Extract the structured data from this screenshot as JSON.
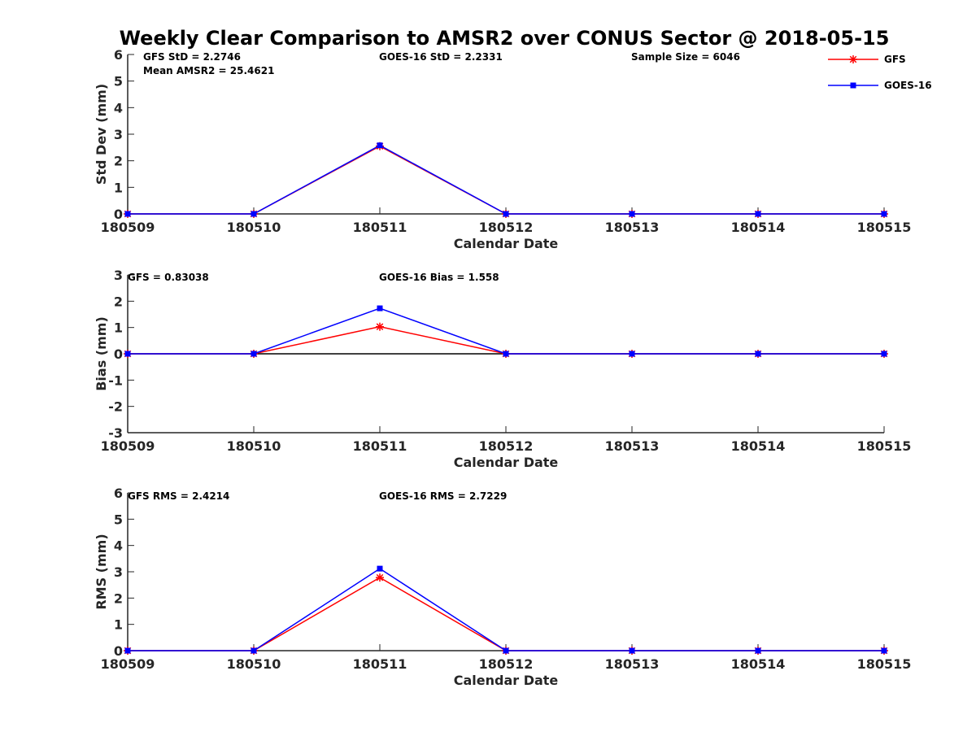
{
  "figure": {
    "title": "Weekly Clear Comparison to AMSR2 over CONUS Sector @ 2018-05-15"
  },
  "legend": {
    "placement": "top-right",
    "entries": [
      {
        "name": "GFS",
        "marker": "asterisk",
        "color": "#ff0000"
      },
      {
        "name": "GOES-16",
        "marker": "square",
        "color": "#0000ff"
      }
    ]
  },
  "chart_data": [
    {
      "type": "line",
      "id": "std",
      "xlabel": "Calendar Date",
      "ylabel": "Std Dev (mm)",
      "ylim": [
        0,
        6
      ],
      "yticks": [
        "0",
        "1",
        "2",
        "3",
        "4",
        "5",
        "6"
      ],
      "categories": [
        "180509",
        "180510",
        "180511",
        "180512",
        "180513",
        "180514",
        "180515"
      ],
      "series": [
        {
          "name": "GFS",
          "color": "#ff0000",
          "marker": "asterisk",
          "values": [
            0,
            0,
            2.55,
            0,
            0,
            0,
            0
          ]
        },
        {
          "name": "GOES-16",
          "color": "#0000ff",
          "marker": "square",
          "values": [
            0,
            0,
            2.58,
            0,
            0,
            0,
            0
          ]
        }
      ],
      "annotations": [
        "GFS StD = 2.2746",
        "Mean AMSR2 = 25.4621",
        "GOES-16 StD = 2.2331",
        "Sample Size = 6046"
      ],
      "zero_line": false
    },
    {
      "type": "line",
      "id": "bias",
      "xlabel": "Calendar Date",
      "ylabel": "Bias (mm)",
      "ylim": [
        -3,
        3
      ],
      "yticks": [
        "-3",
        "-2",
        "-1",
        "0",
        "1",
        "2",
        "3"
      ],
      "categories": [
        "180509",
        "180510",
        "180511",
        "180512",
        "180513",
        "180514",
        "180515"
      ],
      "series": [
        {
          "name": "GFS",
          "color": "#ff0000",
          "marker": "asterisk",
          "values": [
            0,
            0,
            1.03,
            0,
            0,
            0,
            0
          ]
        },
        {
          "name": "GOES-16",
          "color": "#0000ff",
          "marker": "square",
          "values": [
            0,
            0,
            1.73,
            0,
            0,
            0,
            0
          ]
        }
      ],
      "annotations": [
        "GFS = 0.83038",
        "GOES-16 Bias  = 1.558"
      ],
      "zero_line": true
    },
    {
      "type": "line",
      "id": "rms",
      "xlabel": "Calendar Date",
      "ylabel": "RMS (mm)",
      "ylim": [
        0,
        6
      ],
      "yticks": [
        "0",
        "1",
        "2",
        "3",
        "4",
        "5",
        "6"
      ],
      "categories": [
        "180509",
        "180510",
        "180511",
        "180512",
        "180513",
        "180514",
        "180515"
      ],
      "series": [
        {
          "name": "GFS",
          "color": "#ff0000",
          "marker": "asterisk",
          "values": [
            0,
            0,
            2.78,
            0,
            0,
            0,
            0
          ]
        },
        {
          "name": "GOES-16",
          "color": "#0000ff",
          "marker": "square",
          "values": [
            0,
            0,
            3.12,
            0,
            0,
            0,
            0
          ]
        }
      ],
      "annotations": [
        "GFS RMS = 2.4214",
        "GOES-16 RMS = 2.7229"
      ],
      "zero_line": false
    }
  ]
}
